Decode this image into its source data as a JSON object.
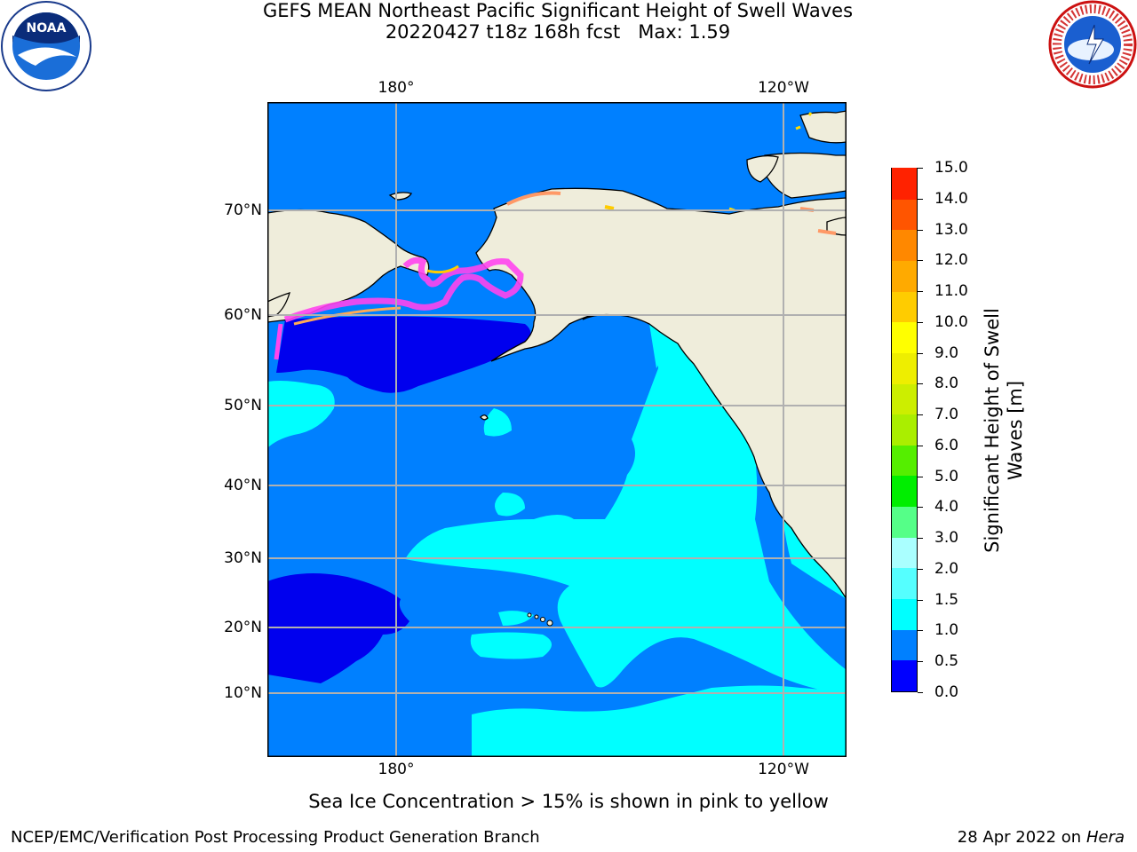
{
  "title": {
    "line1": "GEFS MEAN Northeast Pacific Significant Height of Swell Waves",
    "line2": "20220427 t18z 168h fcst   Max: 1.59"
  },
  "map": {
    "lon_labels": [
      "180°",
      "120°W"
    ],
    "lat_labels": [
      "70°N",
      "60°N",
      "50°N",
      "40°N",
      "30°N",
      "20°N",
      "10°N"
    ],
    "colors": {
      "ocean_low": "#0000ee",
      "ocean_mid": "#0080ff",
      "ocean_high": "#00ffff",
      "land": "#efeddb",
      "ice": "#ff44ee",
      "grid": "#b0b0b0"
    }
  },
  "colorbar": {
    "title_line1": "Significant Height of Swell",
    "title_line2": "Waves [m]",
    "ticks": [
      "0.0",
      "0.5",
      "1.0",
      "1.5",
      "2.0",
      "3.0",
      "4.0",
      "5.0",
      "6.0",
      "7.0",
      "8.0",
      "9.0",
      "10.0",
      "11.0",
      "12.0",
      "13.0",
      "14.0",
      "15.0"
    ],
    "colors": [
      "#0000ff",
      "#0080ff",
      "#00ffff",
      "#55ffff",
      "#aaffff",
      "#55ff88",
      "#00ee00",
      "#55ee00",
      "#aaee00",
      "#ccee00",
      "#eeee00",
      "#ffff00",
      "#ffcc00",
      "#ffaa00",
      "#ff8800",
      "#ff5500",
      "#ff2200",
      "#ff0000"
    ]
  },
  "note": "Sea Ice Concentration > 15% is shown in pink to yellow",
  "footer": {
    "left": "NCEP/EMC/Verification Post Processing Product Generation Branch",
    "right_prefix": "28 Apr 2022 on ",
    "right_host": "Hera"
  },
  "logos": {
    "noaa_text": "NOAA",
    "nws_text": "NATIONAL WEATHER SERVICE"
  }
}
